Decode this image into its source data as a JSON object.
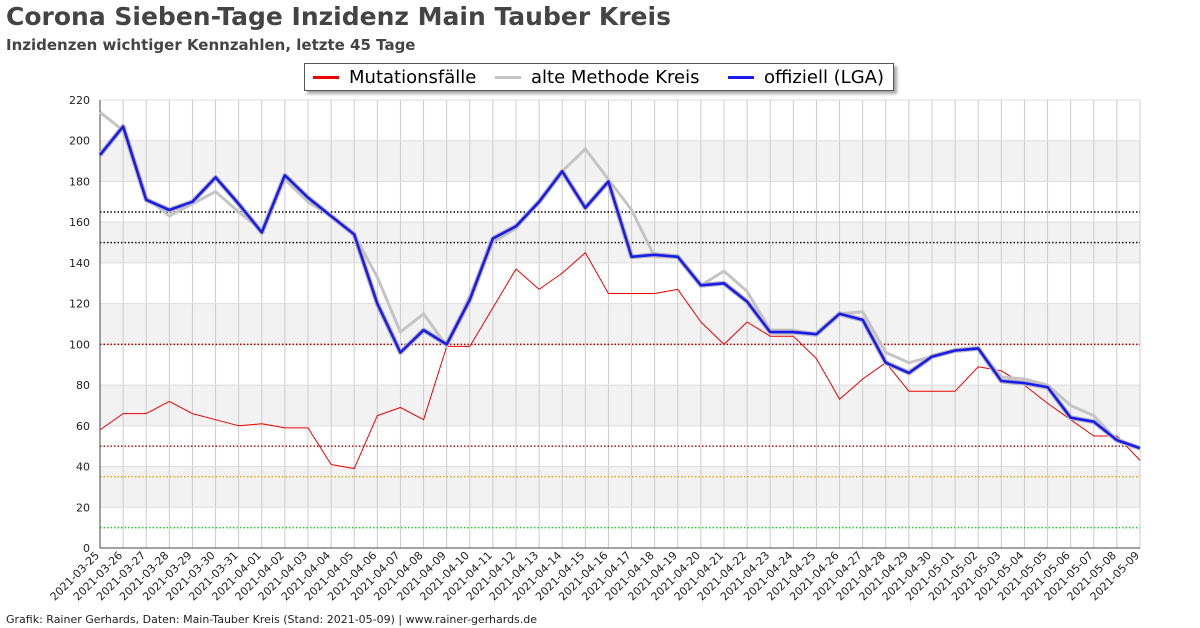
{
  "header": {
    "title": "Corona Sieben-Tage Inzidenz Main Tauber Kreis",
    "subtitle": "Inzidenzen wichtiger Kennzahlen, letzte 45 Tage"
  },
  "footer": {
    "text": "Grafik: Rainer Gerhards, Daten: Main-Tauber Kreis (Stand: 2021-05-09) | www.rainer-gerhards.de"
  },
  "chart_data": {
    "type": "line",
    "title": "Corona Sieben-Tage Inzidenz Main Tauber Kreis",
    "subtitle": "Inzidenzen wichtiger Kennzahlen, letzte 45 Tage",
    "xlabel": "",
    "ylabel": "",
    "ylim": [
      0,
      220
    ],
    "yticks": [
      0,
      20,
      40,
      60,
      80,
      100,
      120,
      140,
      160,
      180,
      200,
      220
    ],
    "grid": true,
    "legend": "top-center",
    "x": [
      "2021-03-25",
      "2021-03-26",
      "2021-03-27",
      "2021-03-28",
      "2021-03-29",
      "2021-03-30",
      "2021-03-31",
      "2021-04-01",
      "2021-04-02",
      "2021-04-03",
      "2021-04-04",
      "2021-04-05",
      "2021-04-06",
      "2021-04-07",
      "2021-04-08",
      "2021-04-09",
      "2021-04-10",
      "2021-04-11",
      "2021-04-12",
      "2021-04-13",
      "2021-04-14",
      "2021-04-15",
      "2021-04-16",
      "2021-04-17",
      "2021-04-18",
      "2021-04-19",
      "2021-04-20",
      "2021-04-21",
      "2021-04-22",
      "2021-04-23",
      "2021-04-24",
      "2021-04-25",
      "2021-04-26",
      "2021-04-27",
      "2021-04-28",
      "2021-04-29",
      "2021-04-30",
      "2021-05-01",
      "2021-05-02",
      "2021-05-03",
      "2021-05-04",
      "2021-05-05",
      "2021-05-06",
      "2021-05-07",
      "2021-05-08",
      "2021-05-09"
    ],
    "series": [
      {
        "name": "Mutationsfälle",
        "color": "#ee0000",
        "values": [
          58,
          66,
          66,
          72,
          66,
          63,
          60,
          61,
          59,
          59,
          41,
          39,
          65,
          69,
          63,
          99,
          99,
          118,
          137,
          127,
          135,
          145,
          125,
          125,
          125,
          127,
          111,
          100,
          111,
          104,
          104,
          93,
          73,
          83,
          91,
          77,
          77,
          77,
          89,
          87,
          80,
          71,
          63,
          55,
          55,
          43
        ]
      },
      {
        "name": "alte Methode Kreis",
        "color": "#c4c4c4",
        "values": [
          214,
          205,
          172,
          163,
          169,
          175,
          165,
          156,
          181,
          170,
          163,
          154,
          133,
          106,
          115,
          99,
          124,
          150,
          157,
          170,
          185,
          196,
          181,
          166,
          143,
          143,
          129,
          136,
          126,
          107,
          107,
          105,
          115,
          116,
          96,
          91,
          94,
          97,
          98,
          84,
          83,
          80,
          70,
          65,
          53,
          49
        ]
      },
      {
        "name": "offiziell (LGA)",
        "color": "#1a1aee",
        "values": [
          193,
          207,
          171,
          166,
          170,
          182,
          169,
          155,
          183,
          172,
          163,
          154,
          120,
          96,
          107,
          100,
          122,
          152,
          158,
          170,
          185,
          167,
          180,
          143,
          144,
          143,
          129,
          130,
          121,
          106,
          106,
          105,
          115,
          112,
          91,
          86,
          94,
          97,
          98,
          82,
          81,
          79,
          64,
          62,
          53,
          49
        ]
      }
    ],
    "reference_lines": [
      {
        "value": 165,
        "color": "#000000"
      },
      {
        "value": 150,
        "color": "#000000"
      },
      {
        "value": 100,
        "color": "#b00000"
      },
      {
        "value": 50,
        "color": "#b00000"
      },
      {
        "value": 35,
        "color": "#e6a100"
      },
      {
        "value": 10,
        "color": "#22cc22"
      }
    ]
  }
}
